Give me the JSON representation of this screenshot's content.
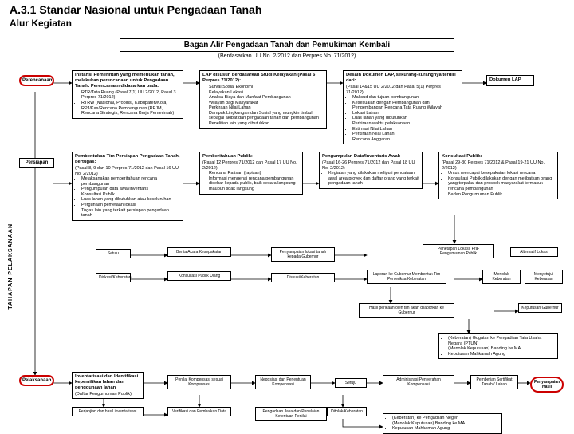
{
  "header": {
    "title": "A.3.1 Standar Nasional untuk Pengadaan Tanah",
    "subtitle": "Alur Kegiatan"
  },
  "chart": {
    "title": "Bagan Alir Pengadaan Tanah dan Pemukiman Kembali",
    "subtitle": "(Berdasarkan UU No. 2/2012 dan Perpres No. 71/2012)"
  },
  "vlabel": "TAHAPAN PELAKSANAAN",
  "phases": {
    "p1": "Perencanaan",
    "p2": "Persiapan",
    "p3": "Pelaksanaan"
  },
  "nodes": {
    "n1": {
      "title": "Instansi Pemerintah yang memerlukan tanah, melakukan perencanaan untuk Pengadaan Tanah. Perencanaan didasarkan pada:",
      "items": [
        "RTR/Tata Ruang (Pasal 7(1) UU 2/2012, Pasal 3 Perpres 71/2012)",
        "RTRW (Nasional, Propinsi, Kabupaten/Kota)",
        "RPJ/Kas/Rencana Pembangunan (RPJM, Rencana Strategis, Rencana Kerja Pemerintah)"
      ]
    },
    "n2": {
      "title": "LAP disusun berdasarkan Studi Kelayakan (Pasal 6 Perpres 71/2012):",
      "items": [
        "Survai Sosial Ekonomi",
        "Kelayakan Lokasi",
        "Analisa Biaya dan Manfaat Pembangunan",
        "Wilayah bagi Masyarakat",
        "Perkiraan Nilai Lahan",
        "Dampak Lingkungan dan Sosial yang mungkin timbul sebagai akibat dari pengadaan tanah dan pembangunan",
        "Penelitian lain yang dibutuhkan"
      ]
    },
    "n3": {
      "title": "Desain Dokumen LAP, sekurang-kurangnya terdiri dari:",
      "sub": "(Pasal 14&15 UU 2/2012 dan Pasal 5(1) Perpres 71/2012)",
      "items": [
        "Maksud dan tujuan pembangunan",
        "Kesesuaian dengan Pembangunan dan Pengembangan Rencana Tata Ruang Wilayah",
        "Lokasi Lahan",
        "Luas lahan yang dibutuhkan",
        "Perkiraan waktu pelaksanaan",
        "Estimasi Nilai Lahan",
        "Perkiraan Nilai Lahan",
        "Rencana Anggaran"
      ]
    },
    "n4": {
      "title": "Dokumen LAP"
    },
    "n5": {
      "title": "Pembentukan Tim Persiapan Pengadaan Tanah, bertugas:",
      "sub": "(Pasal 8, 9 dan 10 Perpres 71/2012 dan Pasal 16 UU No. 2/2012)",
      "items": [
        "Melaksanakan pemberitahuan rencana pembangunan",
        "Pengumpulan data awal/inventaris",
        "Konsultasi Publik",
        "Luas lahan yang dibutuhkan atau keseluruhan",
        "Pergunaan pemetaan lokasi",
        "Tugas lain yang terkait persiapan pengadaan tanah"
      ]
    },
    "n6": {
      "title": "Pemberitahuan Publik:",
      "sub": "(Pasal 12 Perpres 71/2012 dan Pasal 17 UU No. 2/2012)",
      "items": [
        "Rencana Ratisan (rapisan)",
        "Informasi mengenai rencana pembangunan disebar kepada publik, baik secara langsung maupun tidak langsung"
      ]
    },
    "n7": {
      "title": "Pengumpulan Data/Inventaris Awal:",
      "sub": "(Pasal 16-26 Perpres 71/2012 dan Pasal 18 UU No. 2/2012)",
      "items": [
        "Kegiatan yang dilakukan meliputi pendataan awal area proyek dan daftar orang yang terkait pengadaan tanah"
      ]
    },
    "n8": {
      "title": "Konsultasi Publik:",
      "sub": "(Pasal 29-30 Perpres 71/2012 & Pasal 19-21 UU No. 2/2012)",
      "items": [
        "Untuk mencapai kesepakatan lokasi rencana",
        "Konsultasi Publik dilakukan dengan melibatkan orang yang terpakai dan prospek masyarakat termasuk rencana pembangunan",
        "Badan Pengumuman Publik"
      ]
    },
    "m1": "Setuju",
    "m2": "Berita Acara Kesepakatan",
    "m3": "Penyampaian lokasi tanah kepada Gubernur",
    "m4": "Penetapan Lokasi, Pra-Pengumuman Publik",
    "m5": "Alternatif Lokasi",
    "m6": "Diskusi/Keberatan",
    "m7": "Konsultasi Publik Ulang",
    "m8": "Diskusi/Keberatan",
    "m9": "Laporan ke Gubernur Membentuk Tim Pemeriksa Keberatan",
    "m10": "Menolak Keberatan",
    "m11": "Menyetujui Keberatan",
    "m12": "Hasil perikaan oleh tim akan dilaporkan ke Gubernur",
    "m13": "Keputusan Gubernur",
    "m14": {
      "items": [
        "(Keberatan) Gugatan ke Pengadilan Tata Usaha Negara (PTUN)",
        "(Menolak Keputusan) Banding ke MA",
        "Keputusan Mahkamah Agung"
      ]
    },
    "b1": {
      "title": "Inventarisasi dan Identifikasi kepemilikan lahan dan penggunaan lahan",
      "sub": "(Daftar Pengumuman Publik)"
    },
    "b2": "Penilai Kompensasi sesuai Kompensasi",
    "b3": "Negosiasi dan Penentuan Kompensasi",
    "b4": "Setuju",
    "b5": "Administrasi Penyerahan Kompensasi",
    "b6": "Pemberian Sertifikat Tanah / Lahan",
    "b7": "Penyampaian Hasil",
    "b8": "Perjanjian dan hasil inventarisasi",
    "b9": "Verifikasi dan Pembaikan Data",
    "b10": "Pengadaan Jasa dan Penelaian Ketentuan Penilai",
    "b11": "Ditolak/Keberatan",
    "b12": {
      "items": [
        "(Keberatan) ke Pengadilan Negeri",
        "(Menolak Keputusan) Banding ke MA",
        "Keputusan Mahkamah Agung"
      ]
    }
  },
  "style": {
    "accent": "#c00000",
    "border": "#000000",
    "bg": "#ffffff"
  }
}
